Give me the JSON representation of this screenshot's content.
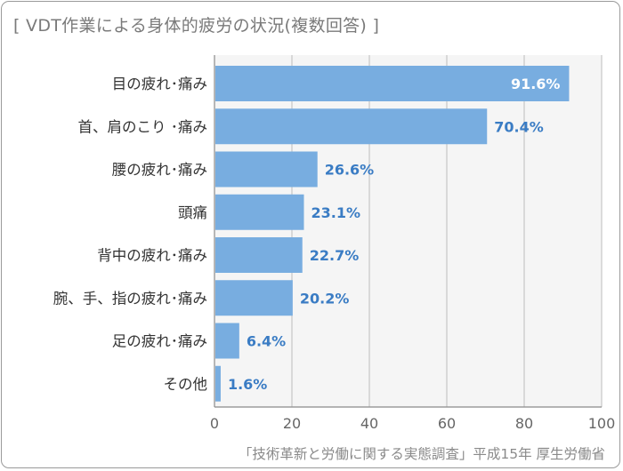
{
  "title": "[ VDT作業による身体的疲労の状況(複数回答) ]",
  "source": "「技術革新と労働に関する実態調査」平成15年 厚生労働省",
  "colors": {
    "bar": "#78ade0",
    "value_inside": "#ffffff",
    "value_outside": "#3a7cc4",
    "plot_bg": "#f5f5f5",
    "grid": "#bdbdbd"
  },
  "chart_data": {
    "type": "bar",
    "orientation": "horizontal",
    "categories": [
      "目の疲れ･痛み",
      "首、肩のこり ･痛み",
      "腰の疲れ･痛み",
      "頭痛",
      "背中の疲れ･痛み",
      "腕、手、指の疲れ･痛み",
      "足の疲れ･痛み",
      "その他"
    ],
    "values": [
      91.6,
      70.4,
      26.6,
      23.1,
      22.7,
      20.2,
      6.4,
      1.6
    ],
    "value_labels": [
      "91.6%",
      "70.4%",
      "26.6%",
      "23.1%",
      "22.7%",
      "20.2%",
      "6.4%",
      "1.6%"
    ],
    "xlim": [
      0,
      100
    ],
    "xticks": [
      "0",
      "20",
      "40",
      "60",
      "80",
      "100"
    ],
    "grid": true
  }
}
